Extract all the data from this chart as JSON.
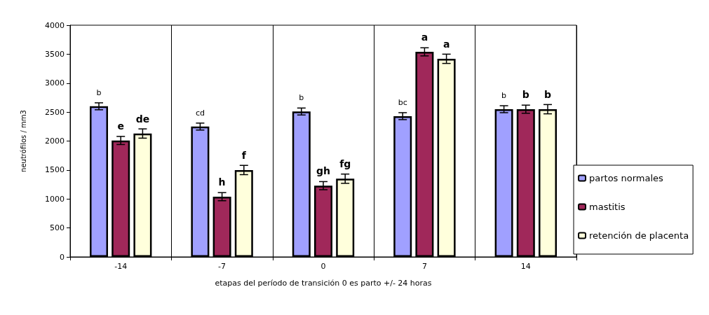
{
  "chart_data": {
    "type": "bar",
    "xlabel": "etapas del período de transición 0 es parto +/- 24 horas",
    "ylabel": "neutrófilos / mm3",
    "categories": [
      "-14",
      "-7",
      "0",
      "7",
      "14"
    ],
    "series": [
      {
        "name": "partos normales",
        "color": "#a0a0ff",
        "values": [
          2600,
          2250,
          2510,
          2430,
          2550
        ],
        "errors": [
          60,
          60,
          60,
          60,
          60
        ],
        "value_labels": [
          "b",
          "cd",
          "b",
          "bc",
          "b"
        ]
      },
      {
        "name": "mastitis",
        "color": "#a0285a",
        "values": [
          2010,
          1040,
          1230,
          3540,
          2550
        ],
        "errors": [
          70,
          70,
          70,
          70,
          70
        ],
        "value_labels": [
          "e",
          "h",
          "gh",
          "a",
          "b"
        ]
      },
      {
        "name": "retención de placenta",
        "color": "#ffffdc",
        "values": [
          2130,
          1500,
          1350,
          3420,
          2550
        ],
        "errors": [
          80,
          80,
          80,
          80,
          80
        ],
        "value_labels": [
          "de",
          "f",
          "fg",
          "a",
          "b"
        ]
      }
    ],
    "ylim": [
      0,
      4000
    ],
    "yticks": [
      0,
      500,
      1000,
      1500,
      2000,
      2500,
      3000,
      3500,
      4000
    ],
    "grid": "x",
    "legend": "right"
  }
}
